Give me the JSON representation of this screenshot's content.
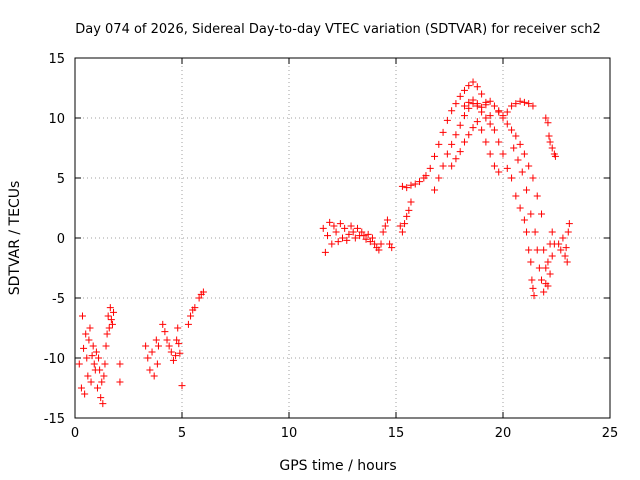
{
  "chart_data": {
    "type": "scatter",
    "title": "Day 074 of 2026, Sidereal Day-to-day VTEC variation (SDTVAR) for receiver sch2",
    "xlabel": "GPS time / hours",
    "ylabel": "SDTVAR / TECUs",
    "xlim": [
      0,
      25
    ],
    "ylim": [
      -15,
      15
    ],
    "xticks": [
      0,
      5,
      10,
      15,
      20,
      25
    ],
    "yticks": [
      -15,
      -10,
      -5,
      0,
      5,
      10,
      15
    ],
    "xtick_labels": [
      "0",
      "5",
      "10",
      "15",
      "20",
      "25"
    ],
    "ytick_labels": [
      "-15",
      "-10",
      "-5",
      "0",
      "5",
      "10",
      "15"
    ],
    "grid": true,
    "marker": "+",
    "color": "#ff0000",
    "series": [
      {
        "name": "sch2 SDTVAR",
        "points": [
          [
            0.2,
            -10.5
          ],
          [
            0.3,
            -12.5
          ],
          [
            0.4,
            -9.2
          ],
          [
            0.5,
            -8.0
          ],
          [
            0.6,
            -11.5
          ],
          [
            0.7,
            -7.5
          ],
          [
            0.8,
            -9.8
          ],
          [
            0.9,
            -10.5
          ],
          [
            0.35,
            -6.5
          ],
          [
            0.45,
            -13.0
          ],
          [
            0.55,
            -10.0
          ],
          [
            0.65,
            -8.5
          ],
          [
            0.75,
            -12.0
          ],
          [
            0.85,
            -9.0
          ],
          [
            0.95,
            -11.0
          ],
          [
            1.0,
            -9.5
          ],
          [
            1.05,
            -12.5
          ],
          [
            1.1,
            -10.0
          ],
          [
            1.15,
            -11.0
          ],
          [
            1.2,
            -13.3
          ],
          [
            1.25,
            -12.0
          ],
          [
            1.3,
            -13.8
          ],
          [
            1.35,
            -11.5
          ],
          [
            1.4,
            -10.5
          ],
          [
            1.45,
            -9.0
          ],
          [
            1.5,
            -8.0
          ],
          [
            1.55,
            -6.5
          ],
          [
            1.6,
            -7.5
          ],
          [
            1.65,
            -5.8
          ],
          [
            1.7,
            -6.8
          ],
          [
            1.75,
            -7.2
          ],
          [
            1.8,
            -6.2
          ],
          [
            2.1,
            -10.5
          ],
          [
            2.1,
            -12.0
          ],
          [
            3.3,
            -9.0
          ],
          [
            3.4,
            -10.0
          ],
          [
            3.5,
            -11.0
          ],
          [
            3.6,
            -9.5
          ],
          [
            3.8,
            -8.5
          ],
          [
            3.9,
            -9.0
          ],
          [
            3.7,
            -11.5
          ],
          [
            3.85,
            -10.5
          ],
          [
            4.1,
            -7.2
          ],
          [
            4.2,
            -7.8
          ],
          [
            4.3,
            -8.5
          ],
          [
            4.4,
            -9.0
          ],
          [
            4.5,
            -9.5
          ],
          [
            4.6,
            -10.2
          ],
          [
            4.7,
            -9.8
          ],
          [
            4.75,
            -8.5
          ],
          [
            4.8,
            -7.5
          ],
          [
            4.85,
            -8.8
          ],
          [
            4.9,
            -9.6
          ],
          [
            5.0,
            -12.3
          ],
          [
            5.3,
            -7.2
          ],
          [
            5.4,
            -6.5
          ],
          [
            5.5,
            -6.0
          ],
          [
            5.6,
            -5.8
          ],
          [
            5.8,
            -5.0
          ],
          [
            5.9,
            -4.7
          ],
          [
            6.0,
            -4.5
          ],
          [
            11.6,
            0.8
          ],
          [
            11.7,
            -1.2
          ],
          [
            11.8,
            0.2
          ],
          [
            11.9,
            1.3
          ],
          [
            12.0,
            -0.5
          ],
          [
            12.1,
            1.0
          ],
          [
            12.2,
            0.5
          ],
          [
            12.3,
            -0.3
          ],
          [
            12.4,
            1.2
          ],
          [
            12.5,
            0.0
          ],
          [
            12.6,
            0.8
          ],
          [
            12.7,
            -0.2
          ],
          [
            12.8,
            0.3
          ],
          [
            12.9,
            1.0
          ],
          [
            13.0,
            0.5
          ],
          [
            13.1,
            0.0
          ],
          [
            13.2,
            0.8
          ],
          [
            13.3,
            0.2
          ],
          [
            13.4,
            0.5
          ],
          [
            13.5,
            0.2
          ],
          [
            13.6,
            -0.1
          ],
          [
            13.7,
            0.3
          ],
          [
            13.8,
            -0.3
          ],
          [
            13.9,
            0.0
          ],
          [
            14.0,
            -0.5
          ],
          [
            14.1,
            -0.8
          ],
          [
            14.2,
            -1.0
          ],
          [
            14.3,
            -0.5
          ],
          [
            14.4,
            0.5
          ],
          [
            14.5,
            1.0
          ],
          [
            14.6,
            1.5
          ],
          [
            14.7,
            -0.5
          ],
          [
            14.8,
            -0.8
          ],
          [
            15.2,
            1.0
          ],
          [
            15.3,
            0.5
          ],
          [
            15.4,
            1.2
          ],
          [
            15.5,
            1.8
          ],
          [
            15.6,
            2.3
          ],
          [
            15.7,
            3.0
          ],
          [
            15.3,
            4.3
          ],
          [
            15.5,
            4.2
          ],
          [
            15.7,
            4.4
          ],
          [
            15.9,
            4.5
          ],
          [
            16.1,
            4.7
          ],
          [
            16.3,
            5.0
          ],
          [
            16.4,
            5.2
          ],
          [
            16.6,
            5.8
          ],
          [
            16.8,
            6.8
          ],
          [
            17.0,
            7.8
          ],
          [
            17.2,
            8.8
          ],
          [
            17.4,
            9.8
          ],
          [
            17.6,
            10.6
          ],
          [
            17.8,
            11.2
          ],
          [
            18.0,
            11.8
          ],
          [
            18.2,
            12.3
          ],
          [
            18.4,
            12.7
          ],
          [
            18.6,
            13.0
          ],
          [
            18.8,
            12.6
          ],
          [
            19.0,
            12.0
          ],
          [
            19.2,
            11.3
          ],
          [
            19.4,
            10.2
          ],
          [
            19.6,
            9.0
          ],
          [
            19.8,
            8.0
          ],
          [
            20.0,
            7.0
          ],
          [
            20.2,
            5.8
          ],
          [
            20.4,
            5.0
          ],
          [
            20.6,
            3.5
          ],
          [
            20.8,
            2.5
          ],
          [
            21.0,
            1.5
          ],
          [
            21.1,
            0.5
          ],
          [
            21.2,
            -1.0
          ],
          [
            21.3,
            -2.0
          ],
          [
            21.35,
            -3.5
          ],
          [
            21.4,
            -4.2
          ],
          [
            21.45,
            -4.8
          ],
          [
            16.8,
            4.0
          ],
          [
            17.0,
            5.0
          ],
          [
            17.2,
            6.0
          ],
          [
            17.4,
            7.0
          ],
          [
            17.6,
            7.8
          ],
          [
            17.8,
            8.6
          ],
          [
            18.0,
            9.4
          ],
          [
            18.2,
            10.2
          ],
          [
            18.4,
            10.8
          ],
          [
            18.6,
            11.2
          ],
          [
            18.8,
            11.0
          ],
          [
            19.0,
            10.5
          ],
          [
            19.2,
            10.0
          ],
          [
            19.4,
            9.5
          ],
          [
            17.6,
            6.0
          ],
          [
            17.8,
            6.6
          ],
          [
            18.0,
            7.2
          ],
          [
            18.2,
            8.0
          ],
          [
            18.4,
            8.6
          ],
          [
            18.6,
            9.2
          ],
          [
            18.8,
            9.7
          ],
          [
            19.0,
            9.0
          ],
          [
            19.2,
            8.0
          ],
          [
            19.4,
            7.0
          ],
          [
            19.6,
            6.0
          ],
          [
            19.8,
            5.5
          ],
          [
            18.2,
            11.0
          ],
          [
            18.4,
            11.3
          ],
          [
            18.6,
            11.5
          ],
          [
            18.8,
            11.2
          ],
          [
            19.0,
            10.9
          ],
          [
            19.2,
            11.1
          ],
          [
            19.4,
            11.4
          ],
          [
            19.6,
            11.0
          ],
          [
            19.8,
            10.6
          ],
          [
            20.0,
            10.2
          ],
          [
            20.2,
            10.5
          ],
          [
            20.4,
            11.0
          ],
          [
            20.6,
            11.2
          ],
          [
            20.8,
            11.4
          ],
          [
            21.0,
            11.3
          ],
          [
            21.2,
            11.2
          ],
          [
            21.4,
            11.0
          ],
          [
            19.8,
            10.5
          ],
          [
            20.0,
            10.0
          ],
          [
            20.2,
            9.5
          ],
          [
            20.4,
            9.0
          ],
          [
            20.6,
            8.5
          ],
          [
            20.8,
            7.8
          ],
          [
            21.0,
            7.0
          ],
          [
            21.2,
            6.0
          ],
          [
            21.4,
            5.0
          ],
          [
            21.6,
            3.5
          ],
          [
            21.8,
            2.0
          ],
          [
            20.5,
            7.5
          ],
          [
            20.7,
            6.5
          ],
          [
            20.9,
            5.5
          ],
          [
            21.1,
            4.0
          ],
          [
            21.3,
            2.0
          ],
          [
            21.5,
            0.5
          ],
          [
            21.6,
            -1.0
          ],
          [
            21.7,
            -2.5
          ],
          [
            21.8,
            -3.5
          ],
          [
            21.9,
            -4.5
          ],
          [
            22.0,
            -3.8
          ],
          [
            22.1,
            -2.0
          ],
          [
            22.2,
            -0.5
          ],
          [
            22.3,
            0.5
          ],
          [
            21.9,
            -1.0
          ],
          [
            22.0,
            -2.5
          ],
          [
            22.1,
            -4.0
          ],
          [
            22.2,
            -3.0
          ],
          [
            22.3,
            -1.5
          ],
          [
            22.4,
            -0.5
          ],
          [
            22.0,
            10.0
          ],
          [
            22.1,
            9.6
          ],
          [
            22.15,
            8.5
          ],
          [
            22.2,
            8.0
          ],
          [
            22.3,
            7.5
          ],
          [
            22.4,
            7.0
          ],
          [
            22.45,
            6.8
          ],
          [
            22.6,
            -0.5
          ],
          [
            22.7,
            -1.0
          ],
          [
            22.8,
            0.0
          ],
          [
            22.9,
            -1.5
          ],
          [
            23.0,
            -2.0
          ],
          [
            23.05,
            0.5
          ],
          [
            23.1,
            1.2
          ],
          [
            22.95,
            -0.8
          ]
        ]
      }
    ]
  }
}
